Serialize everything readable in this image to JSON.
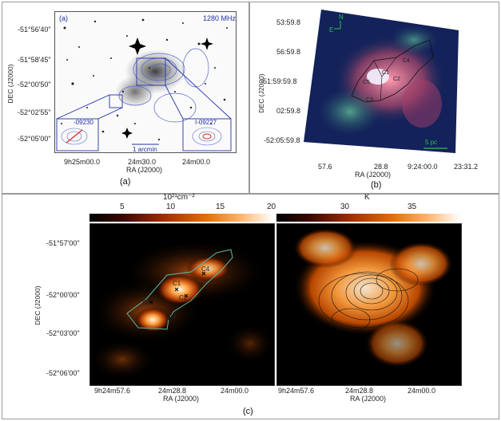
{
  "panel_a": {
    "label": "(a)",
    "corner_tag": "(a)",
    "freq_label": "1280 MHz",
    "inset_left_label": "-09230",
    "inset_right_label": "I-09227",
    "scale_label": "1 arcmin",
    "ylabel": "DEC (J2000)",
    "xlabel": "RA (J2000)",
    "yticks": [
      "-51°56'40\"",
      "-51°58'45\"",
      "-52°00'50\"",
      "-52°02'55\"",
      "-52°05'00\""
    ],
    "xticks": [
      "9h25m00.0",
      "24m30.0",
      "24m00.0"
    ]
  },
  "panel_b": {
    "label": "(b)",
    "ylabel": "DEC (J2000)",
    "xlabel": "RA (J2000)",
    "yticks": [
      "53:59.8",
      "56:59.8",
      "-51:59:59.8",
      "02:59.8",
      "-52:05:59.8"
    ],
    "xticks": [
      "57.6",
      "28.8",
      "9:24:00.0",
      "23:31.2"
    ],
    "north": "N",
    "east": "E",
    "scale_label": "5 pc",
    "clumps": [
      "C1",
      "C2",
      "C3",
      "C4",
      "C5"
    ]
  },
  "panel_c": {
    "label": "(c)",
    "left_cbar_unit": "10²¹cm⁻²",
    "left_cbar_ticks": [
      "5",
      "10",
      "15",
      "20"
    ],
    "right_cbar_unit": "K",
    "right_cbar_ticks": [
      "30",
      "35"
    ],
    "ylabel": "DEC (J2000)",
    "xlabel_left": "RA (J2000)",
    "xlabel_right": "RA (J2000)",
    "yticks": [
      "-51°57'00\"",
      "-52°00'00\"",
      "-52°03'00\"",
      "-52°06'00\""
    ],
    "xticks_left": [
      "9h24m57.6",
      "24m28.8",
      "24m00.0"
    ],
    "xticks_right": [
      "9h24m57.6",
      "24m28.8",
      "24m00.0"
    ],
    "clumps": [
      "C1",
      "C2",
      "C3",
      "C4",
      "C5"
    ]
  }
}
